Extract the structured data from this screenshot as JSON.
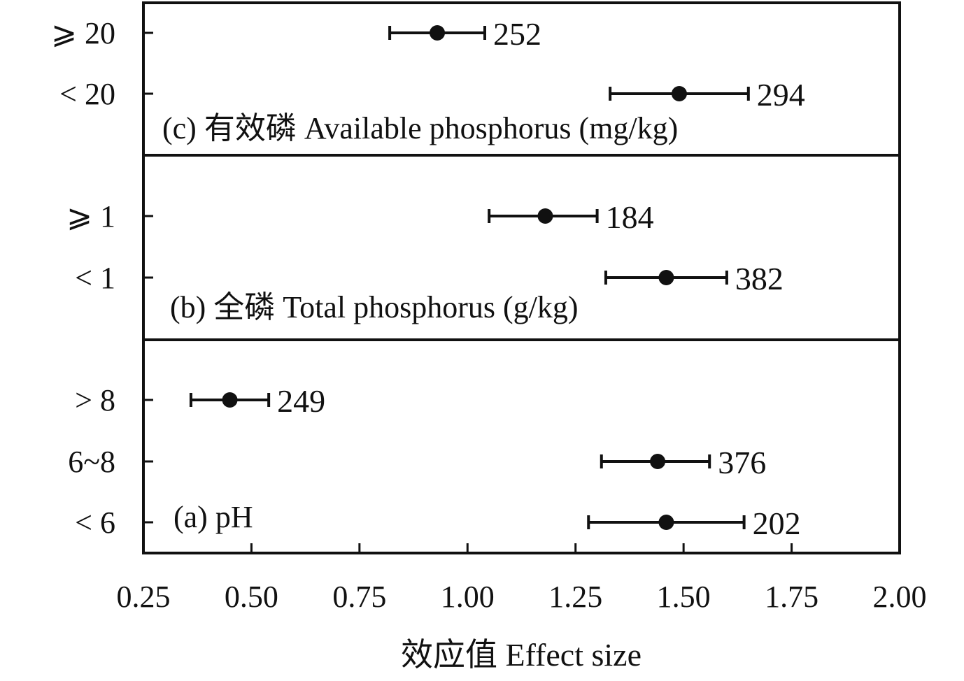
{
  "chart_data": {
    "type": "scatter",
    "subtype": "forest-plot",
    "xlabel": "效应值 Effect size",
    "xlim": [
      0.25,
      2.0
    ],
    "x_ticks": [
      0.25,
      0.5,
      0.75,
      1.0,
      1.25,
      1.5,
      1.75,
      2.0
    ],
    "x_tick_labels": [
      "0.25",
      "0.50",
      "0.75",
      "1.00",
      "1.25",
      "1.50",
      "1.75",
      "2.00"
    ],
    "grid": false,
    "panels": [
      {
        "id": "c",
        "label": "(c) 有效磷 Available phosphorus (mg/kg)",
        "rows": [
          {
            "category": "⩾ 20",
            "value": 0.93,
            "ci": [
              0.82,
              1.04
            ],
            "n": "252"
          },
          {
            "category": "< 20",
            "value": 1.49,
            "ci": [
              1.33,
              1.65
            ],
            "n": "294"
          }
        ]
      },
      {
        "id": "b",
        "label": "(b) 全磷 Total phosphorus (g/kg)",
        "rows": [
          {
            "category": "⩾ 1",
            "value": 1.18,
            "ci": [
              1.05,
              1.3
            ],
            "n": "184"
          },
          {
            "category": "< 1",
            "value": 1.46,
            "ci": [
              1.32,
              1.6
            ],
            "n": "382"
          }
        ]
      },
      {
        "id": "a",
        "label": "(a) pH",
        "rows": [
          {
            "category": "> 8",
            "value": 0.45,
            "ci": [
              0.36,
              0.54
            ],
            "n": "249"
          },
          {
            "category": "6~8",
            "value": 1.44,
            "ci": [
              1.31,
              1.56
            ],
            "n": "376"
          },
          {
            "category": "< 6",
            "value": 1.46,
            "ci": [
              1.28,
              1.64
            ],
            "n": "202"
          }
        ]
      }
    ]
  }
}
